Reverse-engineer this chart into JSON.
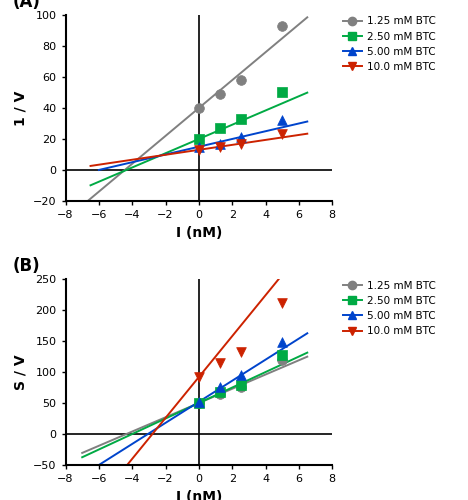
{
  "panel_A": {
    "title": "(A)",
    "xlabel": "I (nM)",
    "ylabel": "1 / V",
    "xlim": [
      -8,
      8
    ],
    "ylim": [
      -20,
      100
    ],
    "xticks": [
      -8,
      -6,
      -4,
      -2,
      0,
      2,
      4,
      6,
      8
    ],
    "yticks": [
      -20,
      0,
      20,
      40,
      60,
      80,
      100
    ],
    "series": [
      {
        "label": "1.25 mM BTC",
        "color": "#808080",
        "marker": "o",
        "marker_size": 7,
        "points_x": [
          0,
          1.25,
          2.5,
          5.0
        ],
        "points_y": [
          40,
          49,
          58,
          93
        ],
        "line_x0": -7.0,
        "line_x1": 6.5,
        "line_slope": 9.0,
        "line_intercept": 40
      },
      {
        "label": "2.50 mM BTC",
        "color": "#00aa44",
        "marker": "s",
        "marker_size": 7,
        "points_x": [
          0,
          1.25,
          2.5,
          5.0
        ],
        "points_y": [
          20,
          27,
          33,
          50
        ],
        "line_x0": -6.5,
        "line_x1": 6.5,
        "line_slope": 4.6,
        "line_intercept": 20
      },
      {
        "label": "5.00 mM BTC",
        "color": "#0044cc",
        "marker": "^",
        "marker_size": 7,
        "points_x": [
          0,
          1.25,
          2.5,
          5.0
        ],
        "points_y": [
          15,
          17,
          21,
          32
        ],
        "line_x0": -6.0,
        "line_x1": 6.5,
        "line_slope": 2.5,
        "line_intercept": 15
      },
      {
        "label": "10.0 mM BTC",
        "color": "#cc2200",
        "marker": "v",
        "marker_size": 7,
        "points_x": [
          0,
          1.25,
          2.5,
          5.0
        ],
        "points_y": [
          13,
          15,
          17,
          23
        ],
        "line_x0": -6.5,
        "line_x1": 6.5,
        "line_slope": 1.6,
        "line_intercept": 13
      }
    ]
  },
  "panel_B": {
    "title": "(B)",
    "xlabel": "I (nM)",
    "ylabel": "S / V",
    "xlim": [
      -8,
      8
    ],
    "ylim": [
      -50,
      250
    ],
    "xticks": [
      -8,
      -6,
      -4,
      -2,
      0,
      2,
      4,
      6,
      8
    ],
    "yticks": [
      -50,
      0,
      50,
      100,
      150,
      200,
      250
    ],
    "series": [
      {
        "label": "1.25 mM BTC",
        "color": "#808080",
        "marker": "o",
        "marker_size": 7,
        "points_x": [
          0,
          1.25,
          2.5,
          5.0
        ],
        "points_y": [
          50,
          65,
          76,
          120
        ],
        "line_x0": -7.0,
        "line_x1": 6.5,
        "line_slope": 11.5,
        "line_intercept": 50
      },
      {
        "label": "2.50 mM BTC",
        "color": "#00aa44",
        "marker": "s",
        "marker_size": 7,
        "points_x": [
          0,
          1.25,
          2.5,
          5.0
        ],
        "points_y": [
          50,
          67,
          79,
          127
        ],
        "line_x0": -7.0,
        "line_x1": 6.5,
        "line_slope": 12.5,
        "line_intercept": 50
      },
      {
        "label": "5.00 mM BTC",
        "color": "#0044cc",
        "marker": "^",
        "marker_size": 7,
        "points_x": [
          0,
          1.25,
          2.5,
          5.0
        ],
        "points_y": [
          52,
          76,
          96,
          148
        ],
        "line_x0": -7.0,
        "line_x1": 6.5,
        "line_slope": 17.0,
        "line_intercept": 52
      },
      {
        "label": "10.0 mM BTC",
        "color": "#cc2200",
        "marker": "v",
        "marker_size": 7,
        "points_x": [
          0,
          1.25,
          2.5,
          5.0
        ],
        "points_y": [
          92,
          115,
          132,
          212
        ],
        "line_x0": -7.0,
        "line_x1": 6.5,
        "line_slope": 33.0,
        "line_intercept": 92
      }
    ]
  },
  "legend_labels": [
    "1.25 mM BTC",
    "2.50 mM BTC",
    "5.00 mM BTC",
    "10.0 mM BTC"
  ],
  "legend_colors": [
    "#808080",
    "#00aa44",
    "#0044cc",
    "#cc2200"
  ],
  "legend_markers": [
    "o",
    "s",
    "^",
    "v"
  ]
}
